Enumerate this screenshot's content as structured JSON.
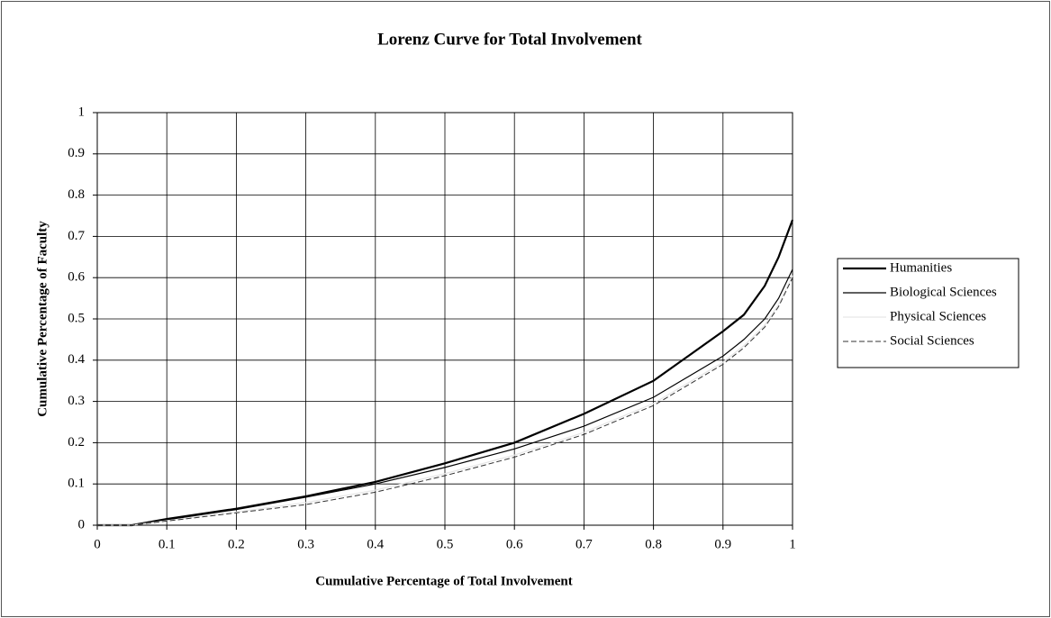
{
  "chart_data": {
    "type": "line",
    "title": "Lorenz Curve for Total Involvement",
    "x_label": "Cumulative Percentage of Total Involvement",
    "y_label": "Cumulative Percentage of Faculty",
    "x": [
      0,
      0.05,
      0.1,
      0.2,
      0.3,
      0.4,
      0.5,
      0.6,
      0.7,
      0.8,
      0.85,
      0.9,
      0.93,
      0.96,
      0.98,
      1
    ],
    "series": [
      {
        "name": "Humanities",
        "color": "#000000",
        "width": 2.2,
        "dashed": false,
        "values": [
          0,
          0,
          0.015,
          0.04,
          0.07,
          0.105,
          0.15,
          0.2,
          0.27,
          0.35,
          0.41,
          0.47,
          0.51,
          0.58,
          0.65,
          0.74
        ]
      },
      {
        "name": "Biological Sciences",
        "color": "#000000",
        "width": 1.2,
        "dashed": false,
        "values": [
          0,
          0,
          0.013,
          0.038,
          0.068,
          0.1,
          0.14,
          0.185,
          0.24,
          0.31,
          0.36,
          0.41,
          0.45,
          0.5,
          0.55,
          0.62
        ]
      },
      {
        "name": "Physical Sciences",
        "color": "#e6e6e6",
        "width": 1.2,
        "dashed": false,
        "values": [
          0,
          0,
          0.011,
          0.032,
          0.055,
          0.085,
          0.125,
          0.17,
          0.225,
          0.295,
          0.345,
          0.395,
          0.435,
          0.485,
          0.535,
          0.605
        ]
      },
      {
        "name": "Social Sciences",
        "color": "#333333",
        "width": 1,
        "dashed": true,
        "values": [
          0,
          0,
          0.01,
          0.03,
          0.05,
          0.08,
          0.12,
          0.165,
          0.22,
          0.29,
          0.34,
          0.39,
          0.43,
          0.48,
          0.53,
          0.6
        ]
      }
    ],
    "xlim": [
      0,
      1
    ],
    "xticks": [
      0,
      0.1,
      0.2,
      0.3,
      0.4,
      0.5,
      0.6,
      0.7,
      0.8,
      0.9,
      1
    ],
    "ylim": [
      0,
      1
    ],
    "yticks": [
      0,
      0.1,
      0.2,
      0.3,
      0.4,
      0.5,
      0.6,
      0.7,
      0.8,
      0.9,
      1
    ],
    "grid": true,
    "legend": "right"
  }
}
